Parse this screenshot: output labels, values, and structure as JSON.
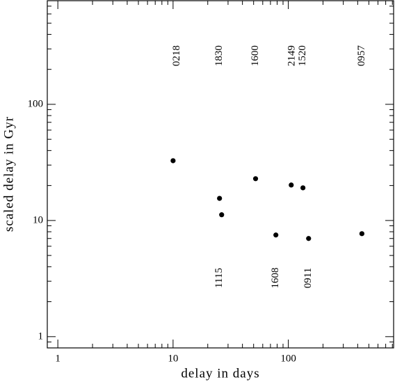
{
  "chart_data": {
    "type": "scatter",
    "x_label": "delay in days",
    "y_label": "scaled delay in Gyr",
    "x": [
      10,
      25.3,
      26.4,
      52,
      78,
      106,
      134,
      150,
      435
    ],
    "values": [
      32.7,
      15.5,
      11.2,
      22.9,
      7.5,
      20.2,
      19.1,
      7.0,
      7.7
    ],
    "color": "#000000",
    "xlog": true,
    "ylog": true,
    "xlim": [
      0.81,
      820
    ],
    "ylim": [
      0.8,
      780
    ],
    "xticks": [
      1,
      10,
      100
    ],
    "yticks": [
      1,
      10,
      100
    ],
    "xminorticks": [
      2,
      3,
      4,
      5,
      6,
      7,
      8,
      9,
      20,
      30,
      40,
      50,
      60,
      70,
      80,
      90,
      200,
      300,
      400,
      500,
      600,
      700,
      800
    ],
    "yminorticks": [
      0.9,
      2,
      3,
      4,
      5,
      6,
      7,
      8,
      9,
      20,
      30,
      40,
      50,
      60,
      70,
      80,
      90,
      200,
      300,
      400,
      500,
      600,
      700
    ],
    "annotations": [
      {
        "text": "0218",
        "x": 10.8,
        "y": 262
      },
      {
        "text": "1830",
        "x": 25.3,
        "y": 262
      },
      {
        "text": "1600",
        "x": 52,
        "y": 262
      },
      {
        "text": "2149",
        "x": 108,
        "y": 262
      },
      {
        "text": "1520",
        "x": 134,
        "y": 262
      },
      {
        "text": "0957",
        "x": 435,
        "y": 262
      },
      {
        "text": "1115",
        "x": 25.3,
        "y": 3.2
      },
      {
        "text": "1608",
        "x": 78,
        "y": 3.2
      },
      {
        "text": "0911",
        "x": 150,
        "y": 3.2
      }
    ]
  }
}
